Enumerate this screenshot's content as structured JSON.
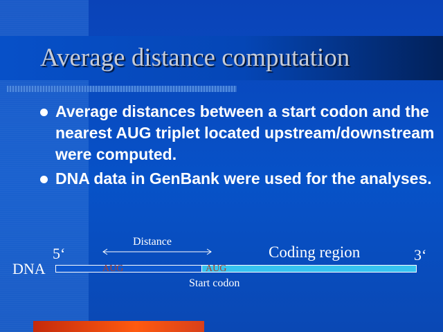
{
  "slide": {
    "title": "Average distance computation",
    "bullets": [
      "Average distances between a start codon and the nearest AUG triplet located upstream/downstream were computed.",
      "DNA data in GenBank were used for the analyses."
    ]
  },
  "diagram": {
    "dna_label": "DNA",
    "five_prime": "5‘",
    "three_prime": "3‘",
    "distance_label": "Distance",
    "coding_region_label": "Coding region",
    "upstream_codon": "AUG",
    "start_codon": "AUG",
    "start_codon_label": "Start codon"
  },
  "colors": {
    "background": "#0752c8",
    "coding_region": "#36c3f0",
    "codon_text": "#a8402e",
    "accent_bar": "#ff5a10"
  }
}
